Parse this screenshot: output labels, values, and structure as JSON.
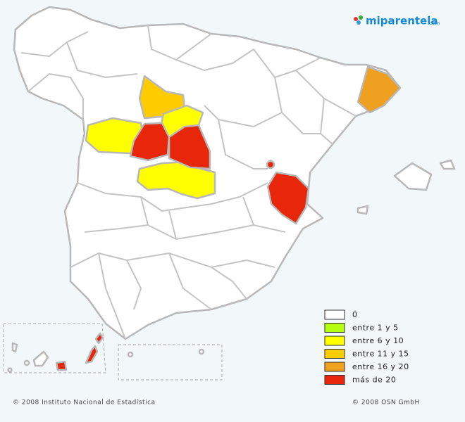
{
  "logo": {
    "name": "miparentela",
    "suffix": ".com"
  },
  "legend": [
    {
      "label": "0",
      "color": "#ffffff"
    },
    {
      "label": "entre 1 y 5",
      "color": "#b4ff10"
    },
    {
      "label": "entre 6 y 10",
      "color": "#ffff00"
    },
    {
      "label": "entre 11 y 15",
      "color": "#ffcc00"
    },
    {
      "label": "entre 16 y 20",
      "color": "#f0a020"
    },
    {
      "label": "más de 20",
      "color": "#e8260a"
    }
  ],
  "footer": {
    "source": "© 2008 Instituto Nacional de Estadística",
    "copyright": "© 2008 OSN GmbH"
  }
}
